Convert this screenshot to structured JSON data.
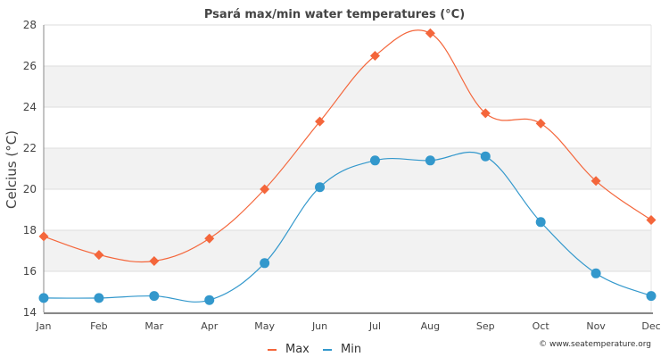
{
  "chart_data": {
    "type": "line",
    "title": "Psará max/min water temperatures (°C)",
    "xlabel": "",
    "ylabel": "Celcius (°C)",
    "categories": [
      "Jan",
      "Feb",
      "Mar",
      "Apr",
      "May",
      "Jun",
      "Jul",
      "Aug",
      "Sep",
      "Oct",
      "Nov",
      "Dec"
    ],
    "ylim": [
      14,
      28
    ],
    "yticks": [
      14,
      16,
      18,
      20,
      22,
      24,
      26,
      28
    ],
    "grid": true,
    "legend_position": "bottom-center",
    "series": [
      {
        "name": "Max",
        "color": "#f4663b",
        "marker": "diamond",
        "values": [
          17.7,
          16.8,
          16.5,
          17.6,
          20.0,
          23.3,
          26.5,
          27.6,
          23.7,
          23.2,
          20.4,
          18.5
        ]
      },
      {
        "name": "Min",
        "color": "#3398cc",
        "marker": "circle",
        "values": [
          14.7,
          14.7,
          14.8,
          14.6,
          16.4,
          20.1,
          21.4,
          21.4,
          21.6,
          18.4,
          15.9,
          14.8
        ]
      }
    ]
  },
  "credit": "© www.seatemperature.org"
}
